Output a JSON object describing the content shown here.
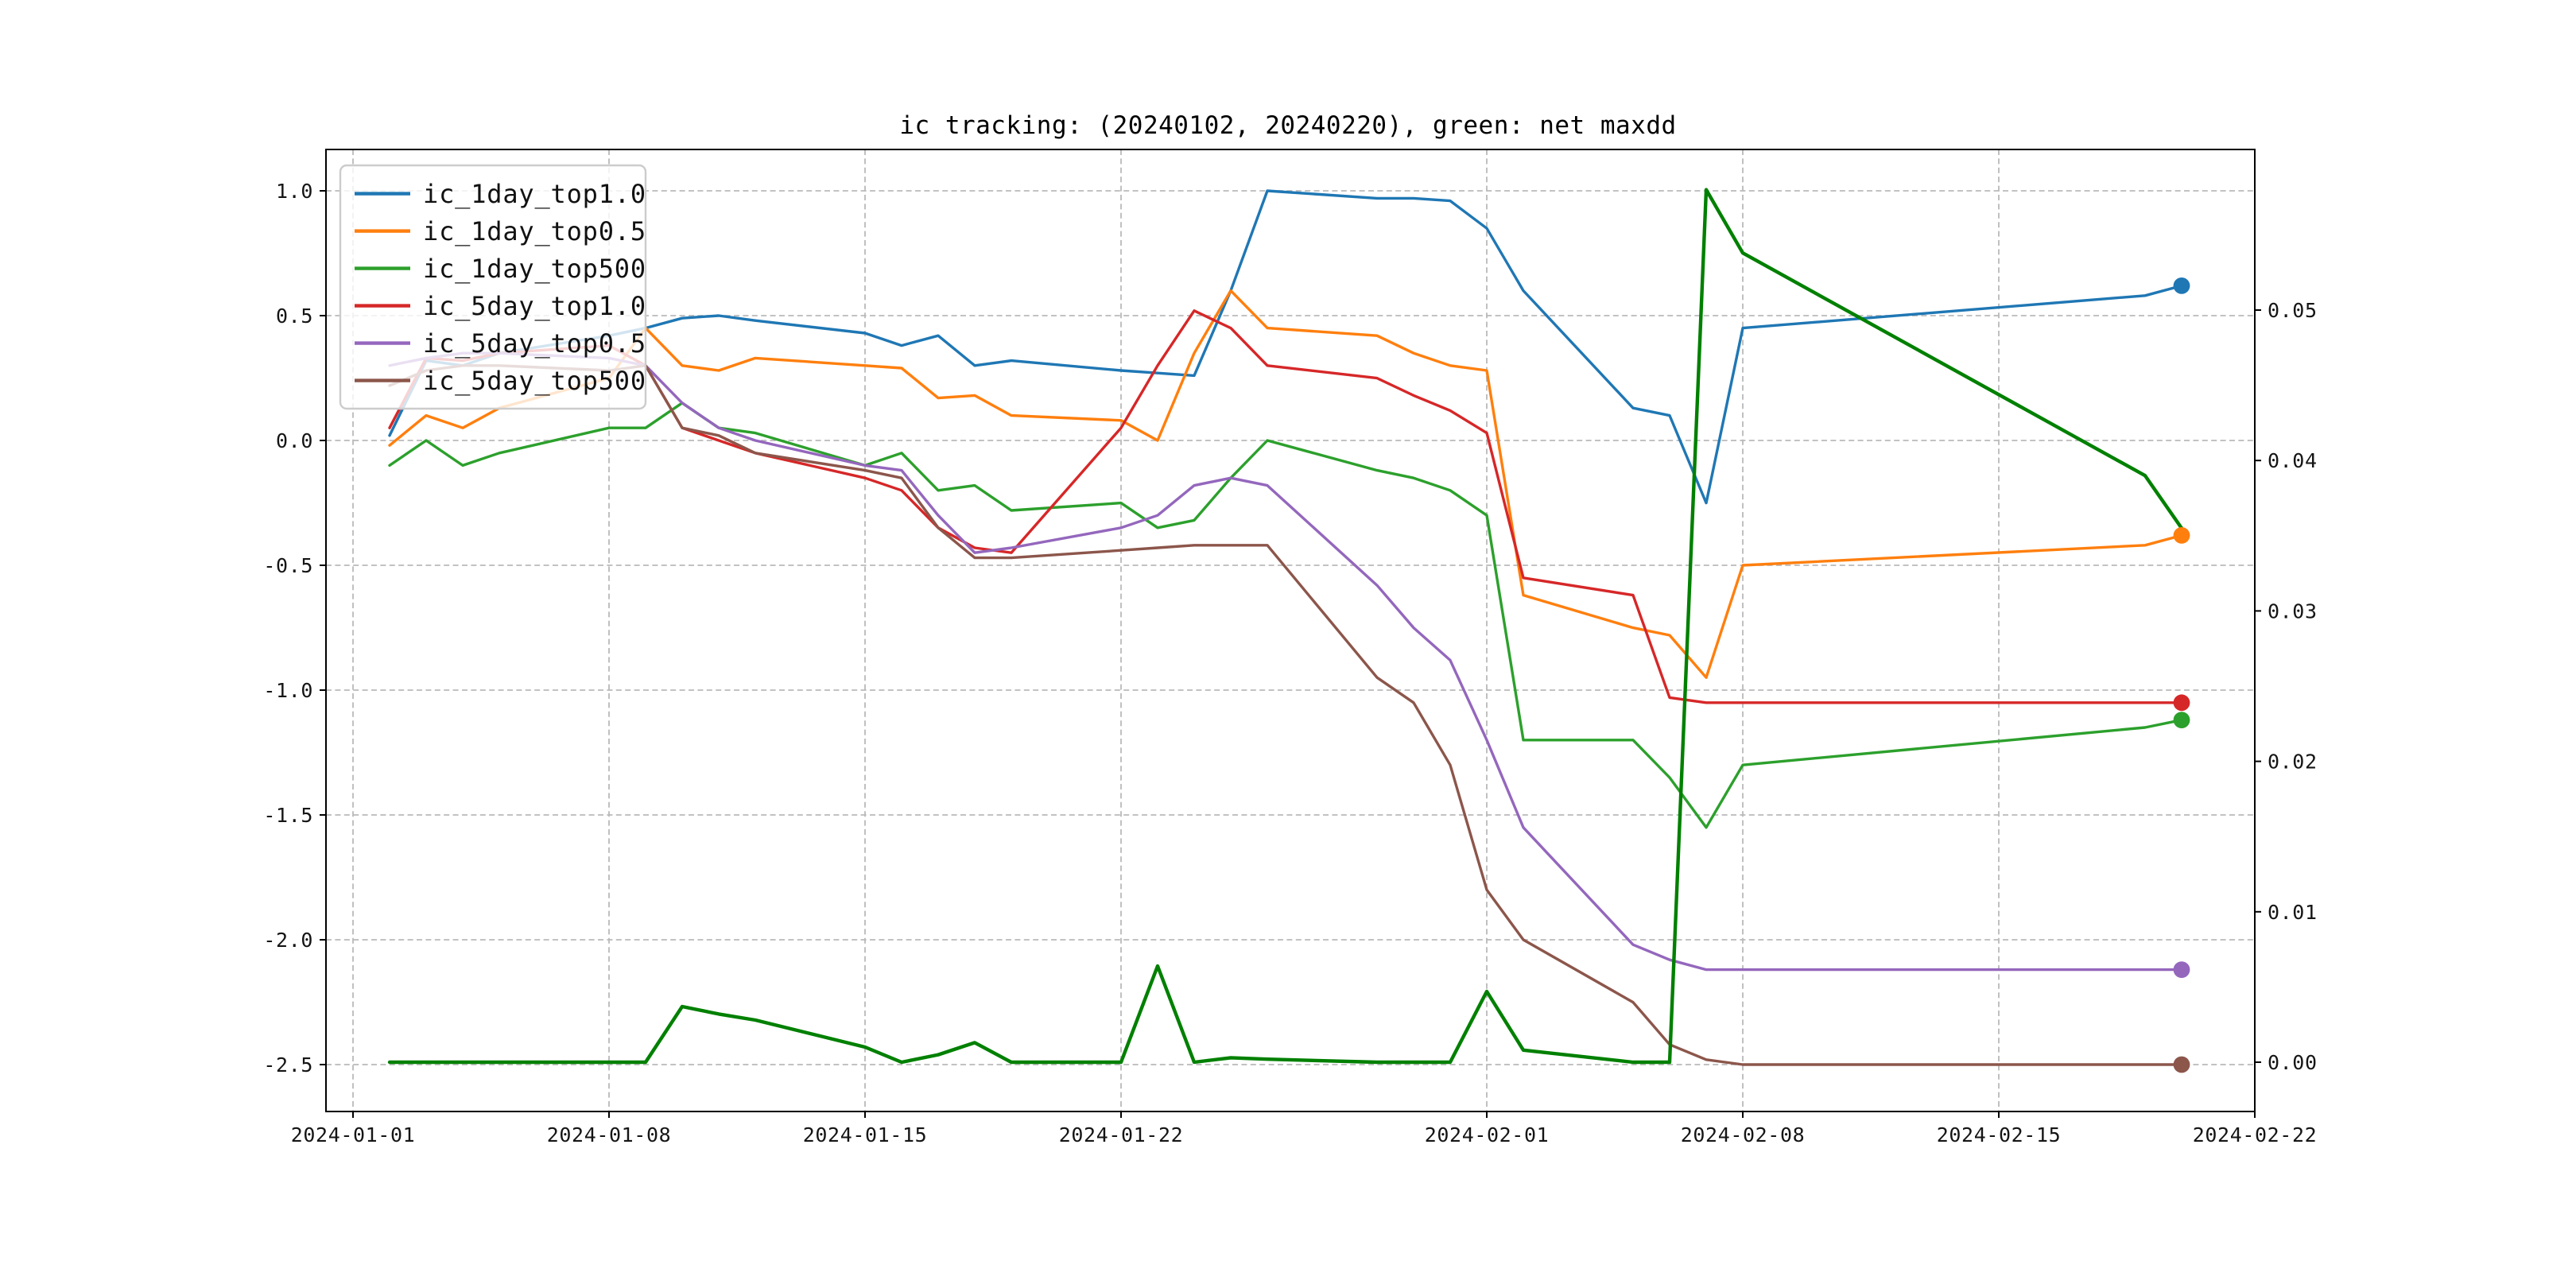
{
  "chart_data": {
    "type": "line",
    "title": "ic tracking: (20240102, 20240220), green: net maxdd",
    "grid": "dashed",
    "legend_position": "upper-left",
    "x_dates": [
      "2024-01-02",
      "2024-01-03",
      "2024-01-04",
      "2024-01-05",
      "2024-01-08",
      "2024-01-09",
      "2024-01-10",
      "2024-01-11",
      "2024-01-12",
      "2024-01-15",
      "2024-01-16",
      "2024-01-17",
      "2024-01-18",
      "2024-01-19",
      "2024-01-22",
      "2024-01-23",
      "2024-01-24",
      "2024-01-25",
      "2024-01-26",
      "2024-01-29",
      "2024-01-30",
      "2024-01-31",
      "2024-02-01",
      "2024-02-02",
      "2024-02-05",
      "2024-02-06",
      "2024-02-07",
      "2024-02-08",
      "2024-02-19",
      "2024-02-20"
    ],
    "x_day_offsets": [
      1,
      2,
      3,
      4,
      7,
      8,
      9,
      10,
      11,
      14,
      15,
      16,
      17,
      18,
      21,
      22,
      23,
      24,
      25,
      28,
      29,
      30,
      31,
      32,
      35,
      36,
      37,
      38,
      49,
      50
    ],
    "x_ticks": [
      {
        "label": "2024-01-01",
        "day": 0
      },
      {
        "label": "2024-01-08",
        "day": 7
      },
      {
        "label": "2024-01-15",
        "day": 14
      },
      {
        "label": "2024-01-22",
        "day": 21
      },
      {
        "label": "2024-02-01",
        "day": 31
      },
      {
        "label": "2024-02-08",
        "day": 38
      },
      {
        "label": "2024-02-15",
        "day": 45
      },
      {
        "label": "2024-02-22",
        "day": 52
      }
    ],
    "left_axis": {
      "min": -2.69,
      "max": 1.16,
      "ticks": [
        {
          "label": "1.0",
          "value": 1.0
        },
        {
          "label": "0.5",
          "value": 0.5
        },
        {
          "label": "0.0",
          "value": 0.0
        },
        {
          "label": "-0.5",
          "value": -0.5
        },
        {
          "label": "-1.0",
          "value": -1.0
        },
        {
          "label": "-1.5",
          "value": -1.5
        },
        {
          "label": "-2.0",
          "value": -2.0
        },
        {
          "label": "-2.5",
          "value": -2.5
        }
      ]
    },
    "right_axis": {
      "min": -0.0033,
      "max": 0.0607,
      "ticks": [
        {
          "label": "0.00",
          "value": 0.0
        },
        {
          "label": "0.01",
          "value": 0.01
        },
        {
          "label": "0.02",
          "value": 0.02
        },
        {
          "label": "0.03",
          "value": 0.03
        },
        {
          "label": "0.04",
          "value": 0.04
        },
        {
          "label": "0.05",
          "value": 0.05
        }
      ]
    },
    "series": [
      {
        "name": "ic_1day_top1.0",
        "color": "#1f77b4",
        "axis": "left",
        "line_width": 1.7,
        "legend": true,
        "end_dot": true,
        "values": [
          0.02,
          0.32,
          0.3,
          0.35,
          0.42,
          0.45,
          0.49,
          0.5,
          0.48,
          0.43,
          0.38,
          0.42,
          0.3,
          0.32,
          0.28,
          0.27,
          0.26,
          0.6,
          1.0,
          0.97,
          0.97,
          0.96,
          0.85,
          0.6,
          0.13,
          0.1,
          -0.25,
          0.45,
          0.58,
          0.62
        ]
      },
      {
        "name": "ic_1day_top0.5",
        "color": "#ff7f0e",
        "axis": "left",
        "line_width": 1.7,
        "legend": true,
        "end_dot": true,
        "values": [
          -0.02,
          0.1,
          0.05,
          0.13,
          0.25,
          0.45,
          0.3,
          0.28,
          0.33,
          0.3,
          0.29,
          0.17,
          0.18,
          0.1,
          0.08,
          0.0,
          0.35,
          0.6,
          0.45,
          0.42,
          0.35,
          0.3,
          0.28,
          -0.62,
          -0.75,
          -0.78,
          -0.95,
          -0.5,
          -0.42,
          -0.38
        ]
      },
      {
        "name": "ic_1day_top500",
        "color": "#2ca02c",
        "axis": "left",
        "line_width": 1.7,
        "legend": true,
        "end_dot": true,
        "values": [
          -0.1,
          0.0,
          -0.1,
          -0.05,
          0.05,
          0.05,
          0.15,
          0.05,
          0.03,
          -0.1,
          -0.05,
          -0.2,
          -0.18,
          -0.28,
          -0.25,
          -0.35,
          -0.32,
          -0.15,
          0.0,
          -0.12,
          -0.15,
          -0.2,
          -0.3,
          -1.2,
          -1.2,
          -1.35,
          -1.55,
          -1.3,
          -1.15,
          -1.12
        ]
      },
      {
        "name": "ic_5day_top1.0",
        "color": "#d62728",
        "axis": "left",
        "line_width": 1.7,
        "legend": true,
        "end_dot": true,
        "values": [
          0.05,
          0.33,
          0.32,
          0.35,
          0.38,
          0.3,
          0.05,
          0.0,
          -0.05,
          -0.15,
          -0.2,
          -0.35,
          -0.43,
          -0.45,
          0.05,
          0.3,
          0.52,
          0.45,
          0.3,
          0.25,
          0.18,
          0.12,
          0.03,
          -0.55,
          -0.62,
          -1.03,
          -1.05,
          -1.05,
          -1.05,
          -1.05
        ]
      },
      {
        "name": "ic_5day_top0.5",
        "color": "#9467bd",
        "axis": "left",
        "line_width": 1.7,
        "legend": true,
        "end_dot": true,
        "values": [
          0.3,
          0.33,
          0.35,
          0.35,
          0.33,
          0.3,
          0.15,
          0.05,
          0.0,
          -0.1,
          -0.12,
          -0.3,
          -0.45,
          -0.43,
          -0.35,
          -0.3,
          -0.18,
          -0.15,
          -0.18,
          -0.58,
          -0.75,
          -0.88,
          -1.2,
          -1.55,
          -2.02,
          -2.08,
          -2.12,
          -2.12,
          -2.12,
          -2.12
        ]
      },
      {
        "name": "ic_5day_top500",
        "color": "#8c564b",
        "axis": "left",
        "line_width": 1.7,
        "legend": true,
        "end_dot": true,
        "values": [
          0.22,
          0.28,
          0.3,
          0.3,
          0.28,
          0.3,
          0.05,
          0.02,
          -0.05,
          -0.12,
          -0.15,
          -0.35,
          -0.47,
          -0.47,
          -0.44,
          -0.43,
          -0.42,
          -0.42,
          -0.42,
          -0.95,
          -1.05,
          -1.3,
          -1.8,
          -2.0,
          -2.25,
          -2.42,
          -2.48,
          -2.5,
          -2.5,
          -2.5
        ]
      },
      {
        "name": "net_maxdd",
        "color": "#008000",
        "axis": "right",
        "line_width": 2.2,
        "legend": false,
        "end_dot": false,
        "values": [
          0,
          0,
          0,
          0,
          0,
          0,
          0.0037,
          0.0032,
          0.0028,
          0.001,
          0,
          0.0005,
          0.0013,
          0,
          0,
          0.0064,
          0,
          0.0003,
          0.0002,
          0,
          0,
          0,
          0.0047,
          0.0008,
          0,
          0,
          0.058,
          0.0538,
          0.039,
          0.0355
        ]
      }
    ]
  }
}
